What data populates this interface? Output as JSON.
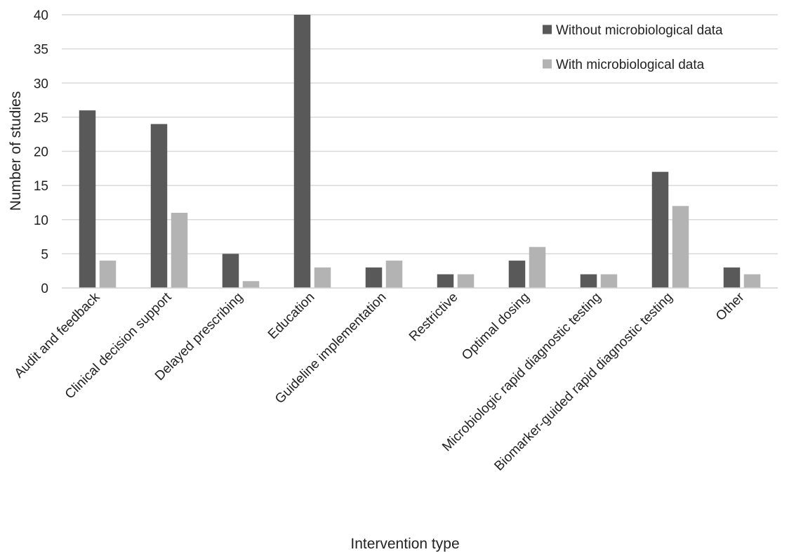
{
  "chart_data": {
    "type": "bar",
    "title": "",
    "xlabel": "Intervention type",
    "ylabel": "Number of studies",
    "ylim": [
      0,
      40
    ],
    "yticks": [
      0,
      5,
      10,
      15,
      20,
      25,
      30,
      35,
      40
    ],
    "grid": true,
    "legend_position": "top-right",
    "categories": [
      "Audit and feedback",
      "Clinical decision support",
      "Delayed prescribing",
      "Education",
      "Guideline implementation",
      "Restrictive",
      "Optimal dosing",
      "Microbiologic rapid diagnostic testing",
      "Biomarker-guided rapid diagnostic testing",
      "Other"
    ],
    "series": [
      {
        "name": "Without microbiological data",
        "color": "#595959",
        "values": [
          26,
          24,
          5,
          40,
          3,
          2,
          4,
          2,
          17,
          3
        ]
      },
      {
        "name": "With microbiological data",
        "color": "#b3b3b3",
        "values": [
          4,
          11,
          1,
          3,
          4,
          2,
          6,
          2,
          12,
          2
        ]
      }
    ]
  }
}
